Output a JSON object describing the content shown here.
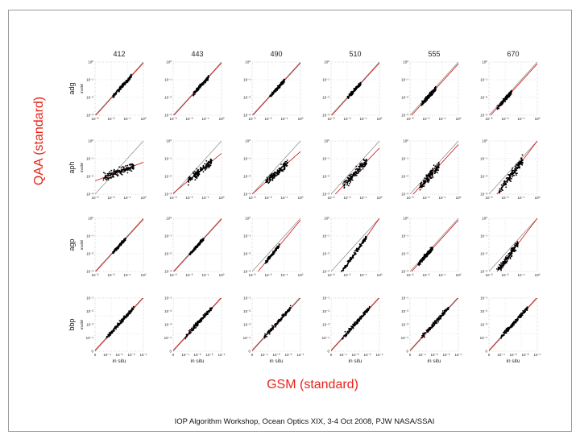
{
  "chart_data": {
    "type": "scatter",
    "title": "",
    "xlabel": "GSM (standard)",
    "ylabel": "QAA (standard)",
    "columns": [
      "412",
      "443",
      "490",
      "510",
      "555",
      "670"
    ],
    "rows": [
      {
        "label": "adg",
        "sublabel": "model",
        "xticks": [
          "10⁻³",
          "10⁻²",
          "10⁻¹",
          "10⁰"
        ],
        "yticks": [
          "10⁰",
          "10⁻¹",
          "10⁻²",
          "10⁻³"
        ],
        "xunit": ""
      },
      {
        "label": "aph",
        "sublabel": "model",
        "xticks": [
          "10⁻³",
          "10⁻²",
          "10⁻¹",
          "10⁰"
        ],
        "yticks": [
          "10⁰",
          "10⁻¹",
          "10⁻²",
          "10⁻³"
        ],
        "xunit": ""
      },
      {
        "label": "agp",
        "sublabel": "model",
        "xticks": [
          "10⁻³",
          "10⁻²",
          "10⁻¹",
          "10⁰"
        ],
        "yticks": [
          "10⁰",
          "10⁻¹",
          "10⁻²",
          "10⁻³"
        ],
        "xunit": ""
      },
      {
        "label": "bbp",
        "sublabel": "model",
        "xticks": [
          "0",
          "10⁻⁴",
          "10⁻³",
          "10⁻²",
          "10⁻¹"
        ],
        "yticks": [
          "10⁻¹",
          "10⁻²",
          "10⁻³",
          "10⁻⁴",
          "0"
        ],
        "xunit": "in situ"
      }
    ],
    "axis_range_log10": [
      -3,
      0
    ],
    "series_color": "#000000",
    "fit_line_color": "#cc1111",
    "one_to_one_line_color": "#888888",
    "clusters": [
      [
        {
          "x0": -1.9,
          "x1": -0.75,
          "slope": 1.0,
          "offset": -0.05,
          "spread": 0.05
        },
        {
          "x0": -1.75,
          "x1": -0.8,
          "slope": 1.0,
          "offset": -0.05,
          "spread": 0.05
        },
        {
          "x0": -1.9,
          "x1": -1.0,
          "slope": 1.0,
          "offset": -0.05,
          "spread": 0.05
        },
        {
          "x0": -2.0,
          "x1": -1.15,
          "slope": 1.0,
          "offset": -0.05,
          "spread": 0.05
        },
        {
          "x0": -2.3,
          "x1": -1.4,
          "slope": 1.0,
          "offset": -0.1,
          "spread": 0.06
        },
        {
          "x0": -2.5,
          "x1": -1.6,
          "slope": 1.0,
          "offset": -0.1,
          "spread": 0.06
        }
      ],
      [
        {
          "x0": -2.5,
          "x1": -0.6,
          "slope": 0.35,
          "offset": -1.2,
          "spread": 0.12
        },
        {
          "x0": -2.1,
          "x1": -0.6,
          "slope": 0.75,
          "offset": -0.7,
          "spread": 0.1
        },
        {
          "x0": -2.2,
          "x1": -0.8,
          "slope": 0.8,
          "offset": -0.6,
          "spread": 0.1
        },
        {
          "x0": -2.3,
          "x1": -0.8,
          "slope": 0.95,
          "offset": -0.4,
          "spread": 0.12
        },
        {
          "x0": -2.4,
          "x1": -1.2,
          "slope": 1.0,
          "offset": -0.2,
          "spread": 0.12
        },
        {
          "x0": -2.4,
          "x1": -0.9,
          "slope": 1.2,
          "offset": 0.0,
          "spread": 0.14
        }
      ],
      [
        {
          "x0": -1.9,
          "x1": -1.1,
          "slope": 1.0,
          "offset": -0.05,
          "spread": 0.04
        },
        {
          "x0": -2.0,
          "x1": -1.1,
          "slope": 1.0,
          "offset": -0.05,
          "spread": 0.04
        },
        {
          "x0": -2.2,
          "x1": -1.3,
          "slope": 1.1,
          "offset": -0.1,
          "spread": 0.05
        },
        {
          "x0": -2.4,
          "x1": -0.8,
          "slope": 1.3,
          "offset": 0.0,
          "spread": 0.06
        },
        {
          "x0": -2.5,
          "x1": -1.6,
          "slope": 1.0,
          "offset": -0.1,
          "spread": 0.06
        },
        {
          "x0": -2.6,
          "x1": -1.2,
          "slope": 1.2,
          "offset": 0.0,
          "spread": 0.1
        }
      ],
      [
        {
          "x0": -2.3,
          "x1": -0.6,
          "slope": 1.0,
          "offset": 0.05,
          "spread": 0.06
        },
        {
          "x0": -2.3,
          "x1": -0.6,
          "slope": 1.0,
          "offset": 0.05,
          "spread": 0.06
        },
        {
          "x0": -2.3,
          "x1": -0.6,
          "slope": 1.0,
          "offset": 0.05,
          "spread": 0.06
        },
        {
          "x0": -2.3,
          "x1": -0.6,
          "slope": 1.0,
          "offset": 0.05,
          "spread": 0.06
        },
        {
          "x0": -2.3,
          "x1": -0.6,
          "slope": 1.0,
          "offset": 0.05,
          "spread": 0.06
        },
        {
          "x0": -2.3,
          "x1": -0.6,
          "slope": 1.0,
          "offset": 0.05,
          "spread": 0.06
        }
      ]
    ]
  },
  "footer": {
    "text": "IOP Algorithm Workshop, Ocean Optics XIX, 3-4 Oct 2008, PJW NASA/SSAI"
  }
}
